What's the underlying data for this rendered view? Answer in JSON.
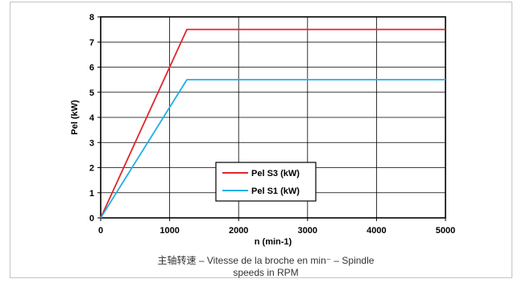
{
  "chart_data": {
    "type": "line",
    "xlabel": "n (min-1)",
    "ylabel": "Pel (kW)",
    "xlim": [
      0,
      5000
    ],
    "ylim": [
      0,
      8
    ],
    "x_ticks": [
      "0",
      "1000",
      "2000",
      "3000",
      "4000",
      "5000"
    ],
    "y_ticks": [
      "0",
      "1",
      "2",
      "3",
      "4",
      "5",
      "6",
      "7",
      "8"
    ],
    "grid": true,
    "legend_position": "center-left",
    "series": [
      {
        "name": "Pel S3 (kW)",
        "color": "#e0262b",
        "x": [
          0,
          1250,
          5000
        ],
        "y": [
          0,
          7.5,
          7.5
        ]
      },
      {
        "name": "Pel S1 (kW)",
        "color": "#1fb0e6",
        "x": [
          0,
          1250,
          5000
        ],
        "y": [
          0,
          5.5,
          5.5
        ]
      }
    ]
  },
  "caption": {
    "line1": "主轴转速  –  Vitesse de la broche en min⁻ – Spindle",
    "line2": "speeds in RPM"
  }
}
